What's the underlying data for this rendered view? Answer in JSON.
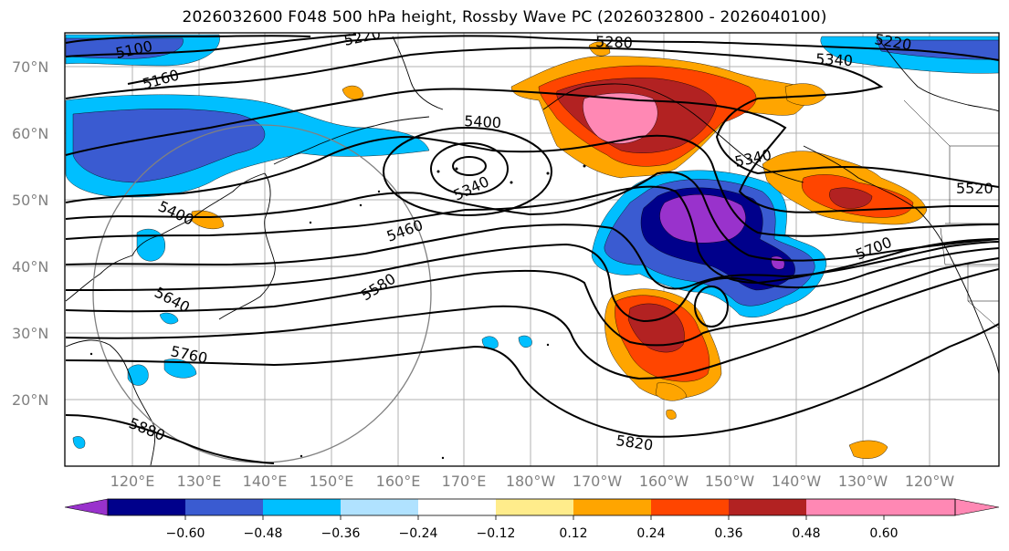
{
  "figure": {
    "title": "2026032600 F048 500 hPa height, Rossby Wave PC (2026032800 - 2026040100)"
  },
  "map": {
    "lat_labels": [
      "70°N",
      "60°N",
      "50°N",
      "40°N",
      "30°N",
      "20°N"
    ],
    "lon_labels": [
      "120°E",
      "130°E",
      "140°E",
      "150°E",
      "160°E",
      "170°E",
      "180°W",
      "170°W",
      "160°W",
      "150°W",
      "140°W",
      "130°W",
      "120°W"
    ],
    "height_contour_labels": [
      "5100",
      "5160",
      "5220",
      "5280",
      "5340",
      "5220",
      "5400",
      "5340",
      "5340",
      "5520",
      "5400",
      "5460",
      "5580",
      "5640",
      "5700",
      "5760",
      "5880",
      "5820"
    ]
  },
  "colorbar": {
    "tick_labels": [
      "−0.60",
      "−0.48",
      "−0.36",
      "−0.24",
      "−0.12",
      "0.12",
      "0.24",
      "0.36",
      "0.48",
      "0.60"
    ],
    "colors": [
      "#9932cc",
      "#00008b",
      "#3a5bd1",
      "#00bfff",
      "#b0e2ff",
      "#ffffff",
      "#ffec8b",
      "#ffa500",
      "#ff4500",
      "#b22222",
      "#ff88b4",
      "#ff88b4"
    ]
  },
  "colors": {
    "positive_strong": "#ff88b4",
    "positive": "#ffa500",
    "negative_strong": "#9932cc",
    "negative": "#00bfff",
    "contour": "#000000",
    "grid": "#b0b0b0"
  }
}
